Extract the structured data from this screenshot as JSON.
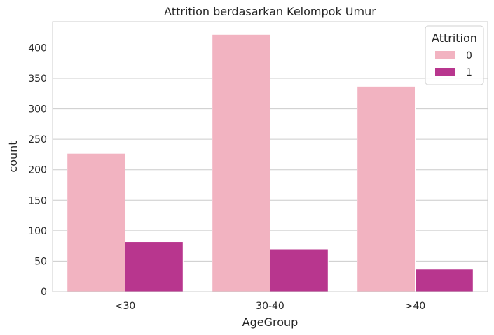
{
  "chart_data": {
    "type": "bar",
    "title": "Attrition berdasarkan Kelompok Umur",
    "xlabel": "AgeGroup",
    "ylabel": "count",
    "categories": [
      "<30",
      "30-40",
      ">40"
    ],
    "series": [
      {
        "name": "0",
        "values": [
          227,
          422,
          337
        ],
        "color": "#f2b3c1"
      },
      {
        "name": "1",
        "values": [
          82,
          70,
          37
        ],
        "color": "#b8368e"
      }
    ],
    "ylim": [
      0,
      443
    ],
    "yticks": [
      0,
      50,
      100,
      150,
      200,
      250,
      300,
      350,
      400
    ],
    "grid": true,
    "legend": {
      "title": "Attrition",
      "placement": "top-right"
    }
  }
}
